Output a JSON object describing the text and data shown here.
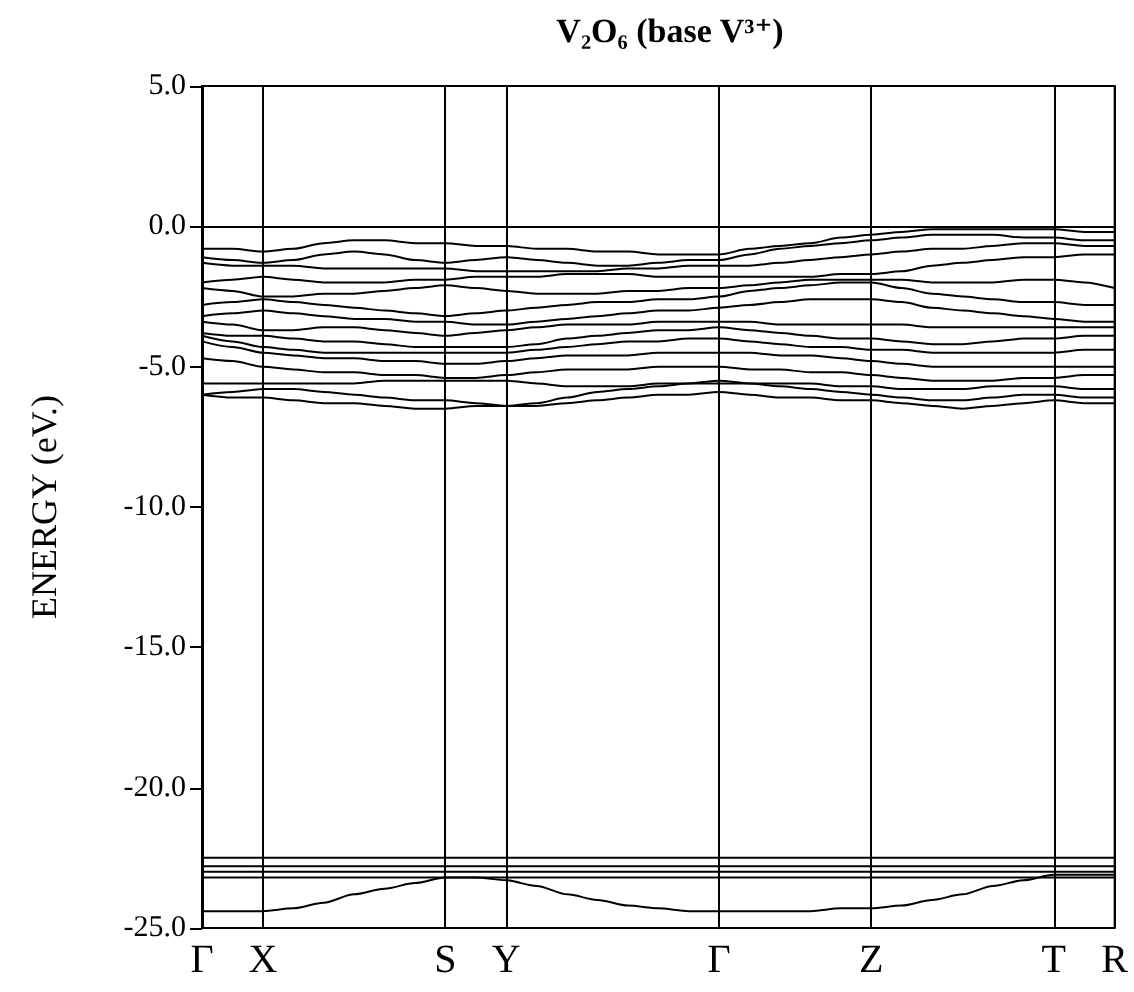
{
  "chart_data": {
    "type": "line",
    "title": "V₂O₆ (base V³⁺)",
    "ylabel": "ENERGY (eV.)",
    "categories": [
      "Γ",
      null,
      "X",
      null,
      null,
      null,
      null,
      null,
      "S",
      null,
      "Y",
      null,
      null,
      null,
      null,
      null,
      null,
      "Γ",
      null,
      null,
      null,
      null,
      "Z",
      null,
      null,
      null,
      null,
      null,
      "T",
      null,
      "R"
    ],
    "ylim": [
      -25,
      5
    ],
    "yticks": [
      {
        "value": -25,
        "label": "-25.0"
      },
      {
        "value": -20,
        "label": "-20.0"
      },
      {
        "value": -15,
        "label": "-15.0"
      },
      {
        "value": -10,
        "label": "-10.0"
      },
      {
        "value": -5,
        "label": "-5.0"
      },
      {
        "value": 0,
        "label": "0.0"
      },
      {
        "value": 5,
        "label": "5.0"
      }
    ],
    "grid": "x",
    "marker": "none",
    "line_style": "solid",
    "series": [
      {
        "color": "#000000",
        "values": [
          -0.8,
          -0.8,
          -0.9,
          -0.8,
          -0.6,
          -0.5,
          -0.5,
          -0.6,
          -0.6,
          -0.7,
          -0.7,
          -0.8,
          -0.8,
          -0.9,
          -0.9,
          -1.0,
          -1.0,
          -1.0,
          -0.8,
          -0.7,
          -0.6,
          -0.4,
          -0.3,
          -0.2,
          -0.1,
          -0.1,
          -0.1,
          -0.1,
          -0.1,
          -0.2,
          -0.2
        ]
      },
      {
        "color": "#000000",
        "values": [
          -1.1,
          -1.2,
          -1.3,
          -1.2,
          -1.0,
          -0.9,
          -1.0,
          -1.2,
          -1.3,
          -1.2,
          -1.1,
          -1.2,
          -1.3,
          -1.4,
          -1.4,
          -1.3,
          -1.2,
          -1.2,
          -1.0,
          -0.8,
          -0.7,
          -0.6,
          -0.5,
          -0.4,
          -0.3,
          -0.3,
          -0.3,
          -0.4,
          -0.4,
          -0.5,
          -0.5
        ]
      },
      {
        "color": "#000000",
        "values": [
          -1.3,
          -1.4,
          -1.4,
          -1.4,
          -1.5,
          -1.5,
          -1.5,
          -1.5,
          -1.5,
          -1.6,
          -1.6,
          -1.6,
          -1.6,
          -1.6,
          -1.5,
          -1.5,
          -1.4,
          -1.4,
          -1.4,
          -1.3,
          -1.2,
          -1.1,
          -1.0,
          -0.9,
          -0.8,
          -0.8,
          -0.7,
          -0.6,
          -0.6,
          -0.7,
          -0.7
        ]
      },
      {
        "color": "#000000",
        "values": [
          -2.0,
          -1.9,
          -1.8,
          -1.9,
          -2.0,
          -2.0,
          -2.0,
          -1.9,
          -1.9,
          -1.8,
          -1.8,
          -1.8,
          -1.7,
          -1.7,
          -1.7,
          -1.8,
          -1.8,
          -1.8,
          -1.8,
          -1.8,
          -1.8,
          -1.7,
          -1.7,
          -1.6,
          -1.4,
          -1.3,
          -1.2,
          -1.1,
          -1.1,
          -1.0,
          -1.0
        ]
      },
      {
        "color": "#000000",
        "values": [
          -2.2,
          -2.3,
          -2.5,
          -2.5,
          -2.4,
          -2.4,
          -2.3,
          -2.2,
          -2.1,
          -2.2,
          -2.3,
          -2.4,
          -2.4,
          -2.4,
          -2.3,
          -2.3,
          -2.2,
          -2.2,
          -2.1,
          -2.0,
          -1.9,
          -1.9,
          -1.9,
          -1.9,
          -2.0,
          -2.0,
          -2.0,
          -1.9,
          -1.9,
          -2.0,
          -2.2
        ]
      },
      {
        "color": "#000000",
        "values": [
          -2.8,
          -2.7,
          -2.6,
          -2.7,
          -2.8,
          -2.9,
          -3.0,
          -3.1,
          -3.2,
          -3.1,
          -3.0,
          -2.9,
          -2.8,
          -2.7,
          -2.7,
          -2.6,
          -2.6,
          -2.5,
          -2.3,
          -2.2,
          -2.1,
          -2.0,
          -2.0,
          -2.2,
          -2.4,
          -2.5,
          -2.6,
          -2.7,
          -2.7,
          -2.8,
          -2.8
        ]
      },
      {
        "color": "#000000",
        "values": [
          -3.2,
          -3.1,
          -3.0,
          -3.1,
          -3.2,
          -3.3,
          -3.3,
          -3.4,
          -3.4,
          -3.5,
          -3.5,
          -3.4,
          -3.3,
          -3.2,
          -3.1,
          -3.0,
          -3.0,
          -2.9,
          -2.8,
          -2.7,
          -2.6,
          -2.6,
          -2.6,
          -2.7,
          -2.9,
          -3.0,
          -3.1,
          -3.2,
          -3.3,
          -3.4,
          -3.4
        ]
      },
      {
        "color": "#000000",
        "values": [
          -3.4,
          -3.5,
          -3.7,
          -3.7,
          -3.6,
          -3.6,
          -3.7,
          -3.8,
          -3.9,
          -3.8,
          -3.7,
          -3.6,
          -3.5,
          -3.5,
          -3.5,
          -3.4,
          -3.4,
          -3.4,
          -3.4,
          -3.5,
          -3.5,
          -3.5,
          -3.5,
          -3.5,
          -3.6,
          -3.6,
          -3.6,
          -3.6,
          -3.6,
          -3.6,
          -3.6
        ]
      },
      {
        "color": "#000000",
        "values": [
          -3.8,
          -3.9,
          -3.9,
          -4.0,
          -4.1,
          -4.1,
          -4.2,
          -4.3,
          -4.3,
          -4.3,
          -4.3,
          -4.2,
          -4.0,
          -3.9,
          -3.8,
          -3.7,
          -3.7,
          -3.6,
          -3.7,
          -3.8,
          -3.9,
          -4.0,
          -4.0,
          -4.1,
          -4.2,
          -4.2,
          -4.1,
          -4.0,
          -4.0,
          -3.9,
          -3.9
        ]
      },
      {
        "color": "#000000",
        "values": [
          -3.9,
          -4.1,
          -4.3,
          -4.4,
          -4.5,
          -4.5,
          -4.5,
          -4.5,
          -4.5,
          -4.5,
          -4.5,
          -4.4,
          -4.3,
          -4.2,
          -4.1,
          -4.1,
          -4.0,
          -4.0,
          -4.1,
          -4.2,
          -4.3,
          -4.3,
          -4.4,
          -4.4,
          -4.5,
          -4.5,
          -4.5,
          -4.5,
          -4.5,
          -4.4,
          -4.4
        ]
      },
      {
        "color": "#000000",
        "values": [
          -4.1,
          -4.3,
          -4.5,
          -4.6,
          -4.7,
          -4.7,
          -4.8,
          -4.8,
          -4.9,
          -4.9,
          -4.8,
          -4.7,
          -4.6,
          -4.6,
          -4.6,
          -4.5,
          -4.5,
          -4.5,
          -4.5,
          -4.6,
          -4.6,
          -4.7,
          -4.8,
          -4.9,
          -5.0,
          -5.0,
          -5.0,
          -5.0,
          -5.0,
          -5.0,
          -5.0
        ]
      },
      {
        "color": "#000000",
        "values": [
          -4.7,
          -4.8,
          -5.0,
          -5.1,
          -5.2,
          -5.2,
          -5.3,
          -5.3,
          -5.4,
          -5.4,
          -5.3,
          -5.2,
          -5.1,
          -5.1,
          -5.1,
          -5.0,
          -5.0,
          -5.0,
          -5.1,
          -5.1,
          -5.2,
          -5.2,
          -5.3,
          -5.4,
          -5.5,
          -5.5,
          -5.5,
          -5.4,
          -5.4,
          -5.3,
          -5.3
        ]
      },
      {
        "color": "#000000",
        "values": [
          -5.6,
          -5.6,
          -5.6,
          -5.6,
          -5.6,
          -5.6,
          -5.5,
          -5.5,
          -5.5,
          -5.5,
          -5.5,
          -5.6,
          -5.7,
          -5.7,
          -5.7,
          -5.6,
          -5.6,
          -5.6,
          -5.6,
          -5.6,
          -5.6,
          -5.7,
          -5.7,
          -5.8,
          -5.8,
          -5.8,
          -5.7,
          -5.7,
          -5.7,
          -5.8,
          -5.8
        ]
      },
      {
        "color": "#000000",
        "values": [
          -6.0,
          -5.9,
          -5.8,
          -5.8,
          -5.9,
          -6.0,
          -6.1,
          -6.2,
          -6.2,
          -6.3,
          -6.4,
          -6.3,
          -6.1,
          -5.9,
          -5.8,
          -5.7,
          -5.6,
          -5.5,
          -5.6,
          -5.7,
          -5.8,
          -5.9,
          -6.0,
          -6.1,
          -6.2,
          -6.2,
          -6.1,
          -6.0,
          -6.0,
          -6.1,
          -6.1
        ]
      },
      {
        "color": "#000000",
        "values": [
          -6.0,
          -6.1,
          -6.1,
          -6.2,
          -6.3,
          -6.3,
          -6.4,
          -6.5,
          -6.5,
          -6.4,
          -6.4,
          -6.4,
          -6.3,
          -6.2,
          -6.1,
          -6.0,
          -6.0,
          -5.9,
          -6.0,
          -6.1,
          -6.1,
          -6.2,
          -6.2,
          -6.3,
          -6.4,
          -6.5,
          -6.4,
          -6.3,
          -6.2,
          -6.3,
          -6.3
        ]
      },
      {
        "color": "#000000",
        "values": [
          -22.5,
          -22.5,
          -22.5,
          -22.5,
          -22.5,
          -22.5,
          -22.5,
          -22.5,
          -22.5,
          -22.5,
          -22.5,
          -22.5,
          -22.5,
          -22.5,
          -22.5,
          -22.5,
          -22.5,
          -22.5,
          -22.5,
          -22.5,
          -22.5,
          -22.5,
          -22.5,
          -22.5,
          -22.5,
          -22.5,
          -22.5,
          -22.5,
          -22.5,
          -22.5,
          -22.5
        ]
      },
      {
        "color": "#000000",
        "values": [
          -22.8,
          -22.8,
          -22.8,
          -22.8,
          -22.8,
          -22.8,
          -22.8,
          -22.8,
          -22.8,
          -22.8,
          -22.8,
          -22.8,
          -22.8,
          -22.8,
          -22.8,
          -22.8,
          -22.8,
          -22.8,
          -22.8,
          -22.8,
          -22.8,
          -22.8,
          -22.8,
          -22.8,
          -22.8,
          -22.8,
          -22.8,
          -22.8,
          -22.8,
          -22.8,
          -22.8
        ]
      },
      {
        "color": "#000000",
        "values": [
          -23.0,
          -23.0,
          -23.0,
          -23.0,
          -23.0,
          -23.0,
          -23.0,
          -23.0,
          -23.0,
          -23.0,
          -23.0,
          -23.0,
          -23.0,
          -23.0,
          -23.0,
          -23.0,
          -23.0,
          -23.0,
          -23.0,
          -23.0,
          -23.0,
          -23.0,
          -23.0,
          -23.0,
          -23.0,
          -23.0,
          -23.0,
          -23.0,
          -23.0,
          -23.0,
          -23.0
        ]
      },
      {
        "color": "#000000",
        "values": [
          -23.2,
          -23.2,
          -23.2,
          -23.2,
          -23.2,
          -23.2,
          -23.2,
          -23.2,
          -23.2,
          -23.2,
          -23.2,
          -23.2,
          -23.2,
          -23.2,
          -23.2,
          -23.2,
          -23.2,
          -23.2,
          -23.2,
          -23.2,
          -23.2,
          -23.2,
          -23.2,
          -23.2,
          -23.2,
          -23.2,
          -23.2,
          -23.2,
          -23.2,
          -23.2,
          -23.2
        ]
      },
      {
        "color": "#000000",
        "values": [
          -24.4,
          -24.4,
          -24.4,
          -24.3,
          -24.1,
          -23.8,
          -23.6,
          -23.4,
          -23.2,
          -23.2,
          -23.3,
          -23.5,
          -23.8,
          -24.0,
          -24.2,
          -24.3,
          -24.4,
          -24.4,
          -24.4,
          -24.4,
          -24.4,
          -24.3,
          -24.3,
          -24.2,
          -24.0,
          -23.8,
          -23.5,
          -23.3,
          -23.1,
          -23.1,
          -23.1
        ]
      }
    ]
  }
}
